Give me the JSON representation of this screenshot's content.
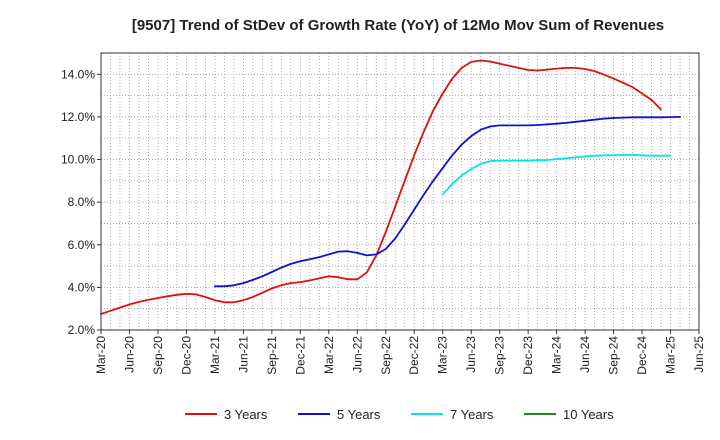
{
  "chart_data": {
    "type": "line",
    "title": "[9507]  Trend of StDev of Growth Rate (YoY) of 12Mo Mov Sum of Revenues",
    "xlabel": "",
    "ylabel": "",
    "ylim": [
      2.0,
      15.0
    ],
    "y_ticks": [
      2.0,
      4.0,
      6.0,
      8.0,
      10.0,
      12.0,
      14.0
    ],
    "y_tick_labels": [
      "2.0%",
      "4.0%",
      "6.0%",
      "8.0%",
      "10.0%",
      "12.0%",
      "14.0%"
    ],
    "x_range": [
      0,
      63
    ],
    "x_ticks": [
      0,
      3,
      6,
      9,
      12,
      15,
      18,
      21,
      24,
      27,
      30,
      33,
      36,
      39,
      42,
      45,
      48,
      51,
      54,
      57,
      60,
      63
    ],
    "x_tick_labels": [
      "Mar-20",
      "Jun-20",
      "Sep-20",
      "Dec-20",
      "Mar-21",
      "Jun-21",
      "Sep-21",
      "Dec-21",
      "Mar-22",
      "Jun-22",
      "Sep-22",
      "Dec-22",
      "Mar-23",
      "Jun-23",
      "Sep-23",
      "Dec-23",
      "Mar-24",
      "Jun-24",
      "Sep-24",
      "Dec-24",
      "Mar-25",
      "Jun-25"
    ],
    "grid": true,
    "legend_position": "bottom",
    "series": [
      {
        "name": "3 Years",
        "color": "#dd1111",
        "start_index": 0,
        "values": [
          2.75,
          2.9,
          3.05,
          3.2,
          3.32,
          3.42,
          3.5,
          3.58,
          3.65,
          3.7,
          3.67,
          3.55,
          3.4,
          3.3,
          3.3,
          3.4,
          3.55,
          3.75,
          3.95,
          4.1,
          4.2,
          4.25,
          4.33,
          4.42,
          4.52,
          4.48,
          4.38,
          4.38,
          4.7,
          5.5,
          6.6,
          7.8,
          9.0,
          10.2,
          11.3,
          12.3,
          13.1,
          13.8,
          14.3,
          14.58,
          14.65,
          14.6,
          14.5,
          14.4,
          14.3,
          14.2,
          14.18,
          14.22,
          14.27,
          14.3,
          14.3,
          14.25,
          14.15,
          13.98,
          13.8,
          13.6,
          13.4,
          13.1,
          12.8,
          12.35
        ]
      },
      {
        "name": "5 Years",
        "color": "#1111cc",
        "start_index": 12,
        "values": [
          4.05,
          4.05,
          4.1,
          4.2,
          4.35,
          4.52,
          4.72,
          4.93,
          5.1,
          5.23,
          5.32,
          5.42,
          5.55,
          5.68,
          5.7,
          5.62,
          5.5,
          5.55,
          5.8,
          6.3,
          6.95,
          7.65,
          8.35,
          9.0,
          9.6,
          10.2,
          10.7,
          11.1,
          11.4,
          11.55,
          11.6,
          11.6,
          11.6,
          11.6,
          11.62,
          11.65,
          11.68,
          11.72,
          11.77,
          11.82,
          11.87,
          11.92,
          11.95,
          11.97,
          11.98,
          11.98,
          11.98,
          11.98,
          11.99,
          12.0
        ]
      },
      {
        "name": "7 Years",
        "color": "#00e5e5",
        "start_index": 36,
        "values": [
          8.35,
          8.85,
          9.25,
          9.55,
          9.8,
          9.92,
          9.95,
          9.95,
          9.95,
          9.95,
          9.97,
          9.98,
          10.02,
          10.06,
          10.1,
          10.14,
          10.18,
          10.2,
          10.21,
          10.22,
          10.22,
          10.2,
          10.18,
          10.18,
          10.18
        ]
      },
      {
        "name": "10 Years",
        "color": "#228822",
        "start_index": 0,
        "values": []
      }
    ]
  }
}
